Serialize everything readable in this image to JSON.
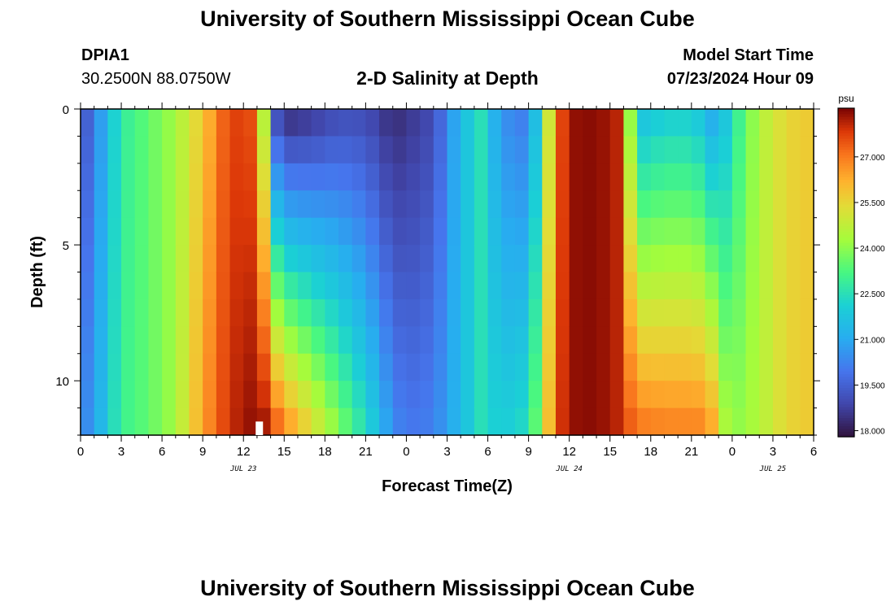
{
  "header": {
    "title": "University of Southern Mississippi Ocean Cube",
    "station": "DPIA1",
    "coords": "30.2500N  88.0750W",
    "subtitle": "2-D Salinity at Depth",
    "model_start_label": "Model Start Time",
    "model_start_value": "07/23/2024 Hour 09"
  },
  "footer": {
    "title": "University of Southern Mississippi Ocean Cube"
  },
  "chart_data": {
    "type": "heatmap",
    "title": "2-D Salinity at Depth",
    "xlabel": "Forecast Time(Z)",
    "ylabel": "Depth (ft)",
    "x_unit": "hours since 07/23 00Z",
    "xlim": [
      0,
      54
    ],
    "ylim": [
      0,
      12
    ],
    "x_ticks": [
      0,
      3,
      6,
      9,
      12,
      15,
      18,
      21,
      24,
      27,
      30,
      33,
      36,
      39,
      42,
      45,
      48,
      51,
      54
    ],
    "x_tick_labels": [
      "0",
      "3",
      "6",
      "9",
      "12",
      "15",
      "18",
      "21",
      "0",
      "3",
      "6",
      "9",
      "12",
      "15",
      "18",
      "21",
      "0",
      "3",
      "6"
    ],
    "y_ticks": [
      0,
      5,
      10
    ],
    "y_tick_labels": [
      "0",
      "5",
      "10"
    ],
    "date_labels": [
      {
        "label": "JUL 23",
        "hour": 12
      },
      {
        "label": "JUL 24",
        "hour": 36
      },
      {
        "label": "JUL 25",
        "hour": 51
      }
    ],
    "colorbar": {
      "unit": "psu",
      "min": 17.8,
      "max": 28.6,
      "ticks": [
        18.0,
        19.5,
        21.0,
        22.5,
        24.0,
        25.5,
        27.0
      ],
      "tick_labels": [
        "18.000",
        "19.500",
        "21.000",
        "22.500",
        "24.000",
        "25.500",
        "27.000"
      ]
    },
    "depths_ft": [
      0,
      1,
      2,
      3,
      4,
      5,
      6,
      7,
      8,
      9,
      10,
      11,
      12
    ],
    "salinity_profiles": [
      {
        "hour": 0,
        "surface": 19.0,
        "bottom": 20.2
      },
      {
        "hour": 1,
        "surface": 20.0,
        "bottom": 20.8
      },
      {
        "hour": 2,
        "surface": 21.5,
        "bottom": 22.0
      },
      {
        "hour": 3,
        "surface": 22.8,
        "bottom": 23.0
      },
      {
        "hour": 5,
        "surface": 23.5,
        "bottom": 23.5
      },
      {
        "hour": 7,
        "surface": 24.3,
        "bottom": 24.3
      },
      {
        "hour": 9,
        "surface": 25.8,
        "bottom": 26.5
      },
      {
        "hour": 11,
        "surface": 27.8,
        "bottom": 28.0
      },
      {
        "hour": 12.8,
        "surface": 27.5,
        "bottom": 28.5
      },
      {
        "hour": 13.5,
        "surface": 24.5,
        "bottom": 28.4
      },
      {
        "hour": 14,
        "surface": 19.5,
        "bottom": 28.0
      },
      {
        "hour": 15,
        "surface": 18.2,
        "bottom": 27.0
      },
      {
        "hour": 17,
        "surface": 18.5,
        "bottom": 25.5
      },
      {
        "hour": 19,
        "surface": 19.0,
        "bottom": 24.0
      },
      {
        "hour": 21,
        "surface": 19.0,
        "bottom": 22.5
      },
      {
        "hour": 23,
        "surface": 18.3,
        "bottom": 20.5
      },
      {
        "hour": 24,
        "surface": 18.5,
        "bottom": 20.0
      },
      {
        "hour": 26,
        "surface": 19.0,
        "bottom": 20.2
      },
      {
        "hour": 28,
        "surface": 21.5,
        "bottom": 21.5
      },
      {
        "hour": 29.5,
        "surface": 22.5,
        "bottom": 22.5
      },
      {
        "hour": 31,
        "surface": 20.5,
        "bottom": 22.0
      },
      {
        "hour": 33,
        "surface": 20.0,
        "bottom": 22.5
      },
      {
        "hour": 34,
        "surface": 23.0,
        "bottom": 24.5
      },
      {
        "hour": 35,
        "surface": 27.0,
        "bottom": 27.5
      },
      {
        "hour": 36,
        "surface": 28.4,
        "bottom": 28.4
      },
      {
        "hour": 38,
        "surface": 28.5,
        "bottom": 28.5
      },
      {
        "hour": 40,
        "surface": 28.0,
        "bottom": 28.0
      },
      {
        "hour": 40.5,
        "surface": 24.0,
        "bottom": 27.5
      },
      {
        "hour": 41,
        "surface": 21.5,
        "bottom": 27.2
      },
      {
        "hour": 43,
        "surface": 22.0,
        "bottom": 27.0
      },
      {
        "hour": 45,
        "surface": 22.0,
        "bottom": 27.0
      },
      {
        "hour": 46,
        "surface": 21.5,
        "bottom": 27.0
      },
      {
        "hour": 46.5,
        "surface": 21.0,
        "bottom": 26.5
      },
      {
        "hour": 47,
        "surface": 21.0,
        "bottom": 25.0
      },
      {
        "hour": 48,
        "surface": 22.5,
        "bottom": 24.0
      },
      {
        "hour": 50,
        "surface": 24.5,
        "bottom": 24.5
      },
      {
        "hour": 52,
        "surface": 25.5,
        "bottom": 25.5
      },
      {
        "hour": 54,
        "surface": 25.8,
        "bottom": 25.8
      }
    ]
  }
}
